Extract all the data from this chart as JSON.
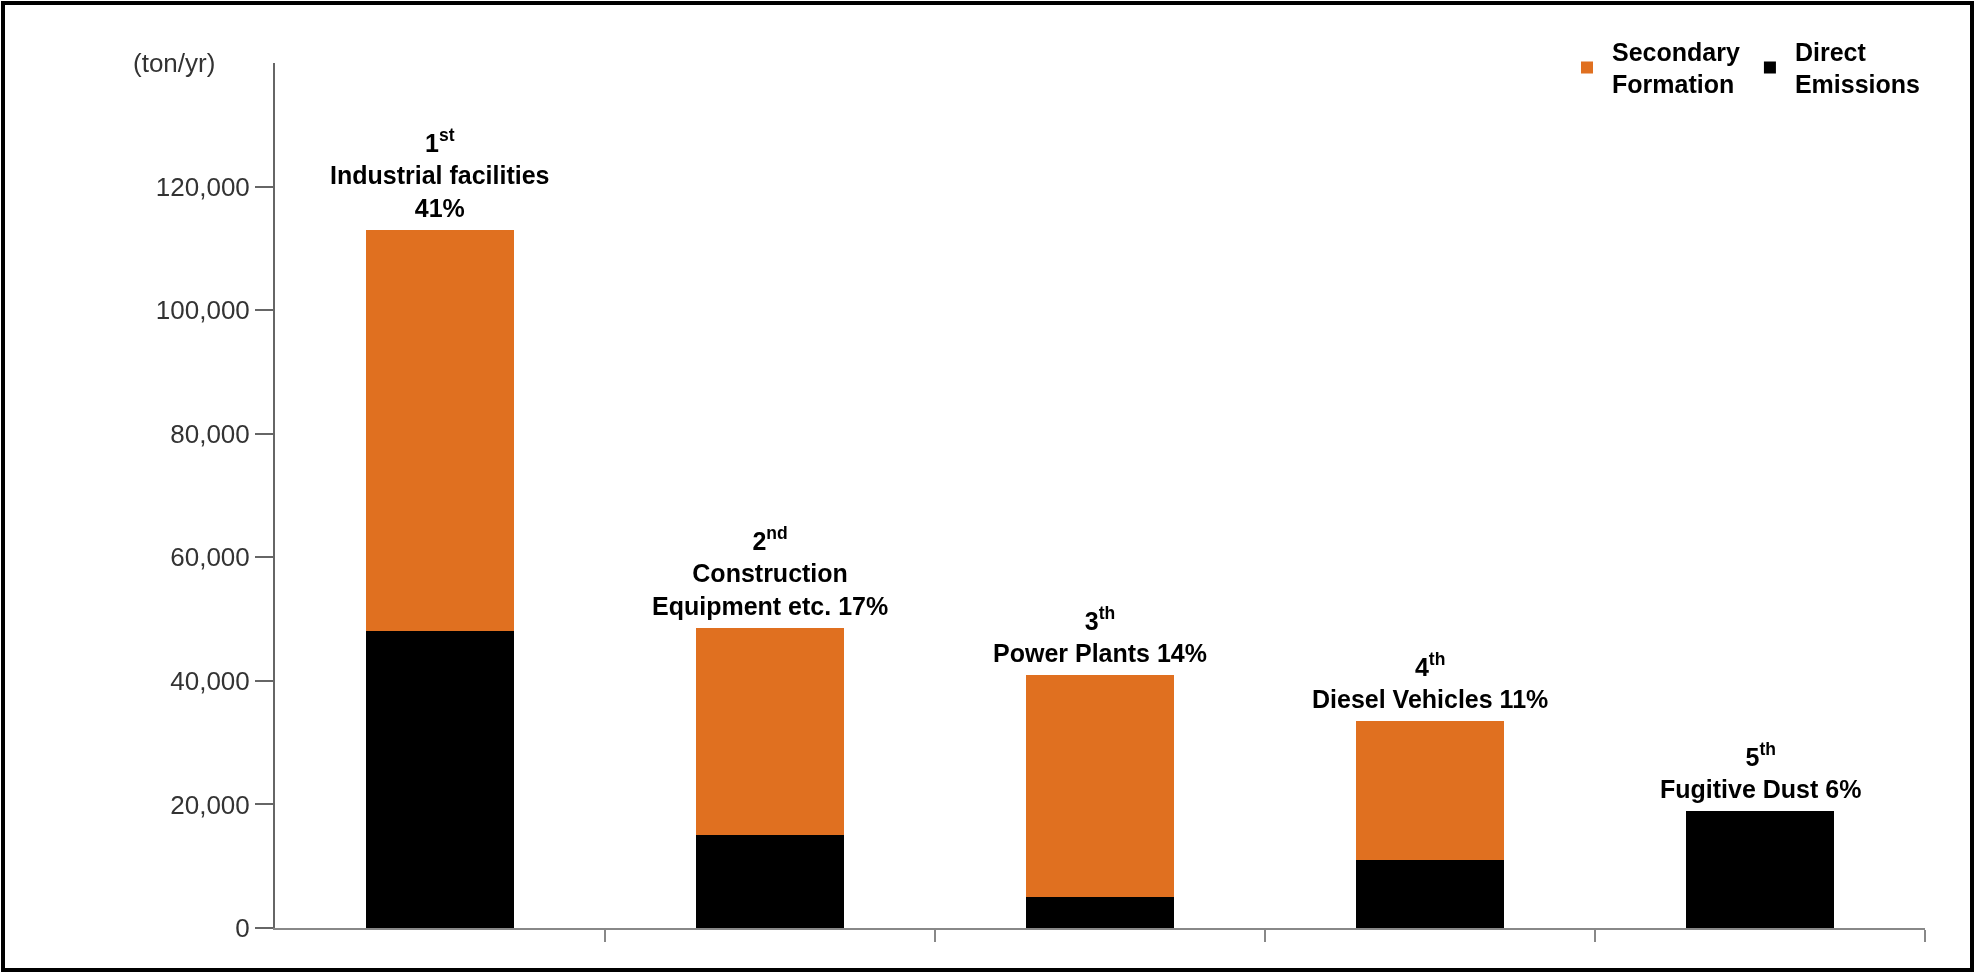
{
  "chart_data": {
    "type": "bar",
    "stacked": true,
    "ylabel": "(ton/yr)",
    "categories": [
      null,
      null,
      null,
      null,
      null
    ],
    "series": [
      {
        "name": "Direct\nEmissions",
        "color": "#000000",
        "values": [
          48000,
          15000,
          5000,
          11000,
          19000
        ]
      },
      {
        "name": "Secondary\nFormation",
        "color": "#e07020",
        "values": [
          65000,
          33500,
          36000,
          22500,
          null
        ]
      }
    ],
    "ylim": [
      0,
      140000
    ],
    "yticks": [
      {
        "value": 0,
        "label": "0"
      },
      {
        "value": 20000,
        "label": "20,000"
      },
      {
        "value": 40000,
        "label": "40,000"
      },
      {
        "value": 60000,
        "label": "60,000"
      },
      {
        "value": 80000,
        "label": "80,000"
      },
      {
        "value": 100000,
        "label": "100,000"
      },
      {
        "value": 120000,
        "label": "120,000"
      }
    ],
    "annotations": [
      {
        "text": "1$^{st}$\nIndustrial facilities\n41%",
        "y": 113000
      },
      {
        "text": "2$^{nd}$\nConstruction\nEquipment etc. 17%",
        "y": 48500
      },
      {
        "text": "3$^{th}$\nPower Plants 14%",
        "y": 41000
      },
      {
        "text": "4$^{th}$\nDiesel Vehicles 11%",
        "y": 33500
      },
      {
        "text": "5$^{th}$\nFugitive Dust 6%",
        "y": 19000
      }
    ],
    "legend": "top right"
  }
}
